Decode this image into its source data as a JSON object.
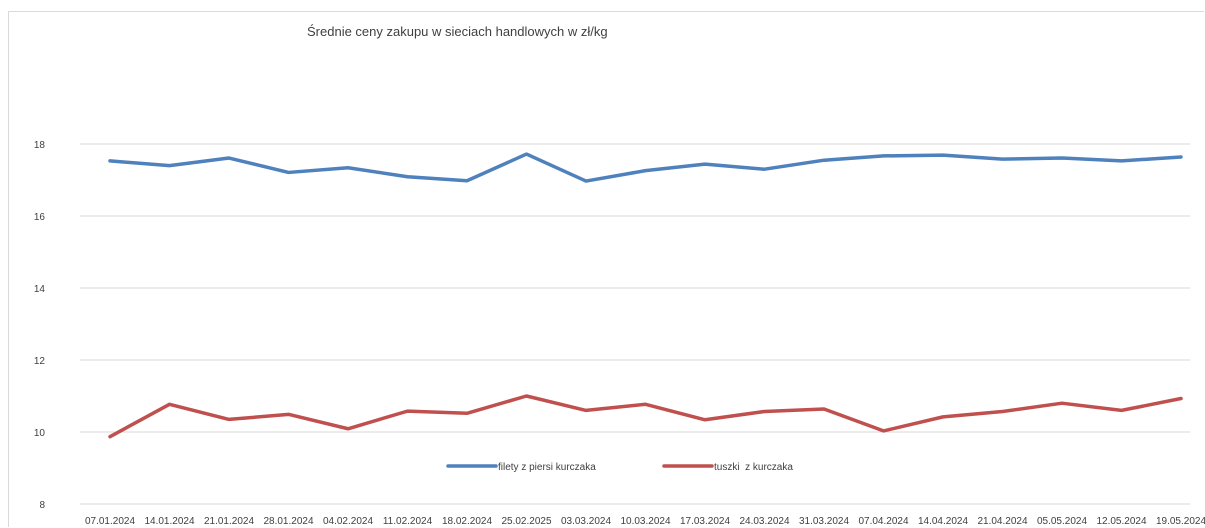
{
  "chart_data": {
    "type": "line",
    "title": "Średnie ceny zakupu w sieciach handlowych w zł/kg",
    "xlabel": "",
    "ylabel": "",
    "categories": [
      "07.01.2024",
      "14.01.2024",
      "21.01.2024",
      "28.01.2024",
      "04.02.2024",
      "11.02.2024",
      "18.02.2024",
      "25.02.2025",
      "03.03.2024",
      "10.03.2024",
      "17.03.2024",
      "24.03.2024",
      "31.03.2024",
      "07.04.2024",
      "14.04.2024",
      "21.04.2024",
      "05.05.2024",
      "12.05.2024",
      "19.05.2024"
    ],
    "ylim": [
      8,
      18
    ],
    "yticks": [
      8,
      10,
      12,
      14,
      16,
      18
    ],
    "grid": true,
    "legend_position": "bottom",
    "series": [
      {
        "name": "filety z piersi kurczaka",
        "color": "#4F81BD",
        "values": [
          17.53,
          17.4,
          17.61,
          17.21,
          17.34,
          17.09,
          16.98,
          17.72,
          16.97,
          17.26,
          17.44,
          17.3,
          17.55,
          17.67,
          17.69,
          17.58,
          17.61,
          17.53,
          17.64
        ]
      },
      {
        "name": "tuszki  z kurczaka",
        "color": "#C0504D",
        "values": [
          9.87,
          10.77,
          10.35,
          10.49,
          10.09,
          10.58,
          10.52,
          11.0,
          10.6,
          10.77,
          10.34,
          10.57,
          10.64,
          10.03,
          10.42,
          10.57,
          10.8,
          10.6,
          10.93
        ]
      }
    ]
  }
}
